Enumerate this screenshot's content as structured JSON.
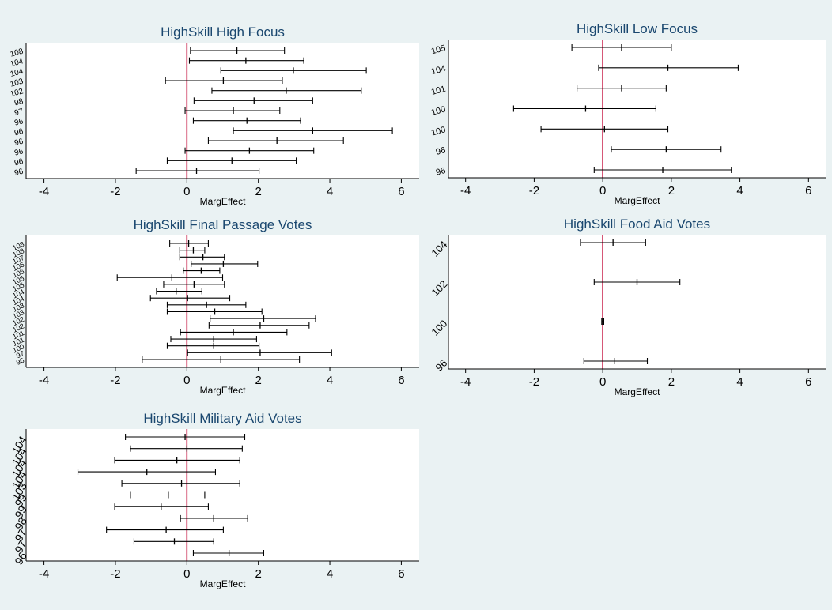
{
  "figure": {
    "background": "#eaf2f3",
    "plot_background": "#ffffff",
    "title_color": "#1a476f",
    "reference_line_color": "#c10534",
    "whisker_color": "#000000"
  },
  "chart_data": [
    {
      "type": "scatter",
      "title": "HighSkill High Focus",
      "xlabel": "MargEffect",
      "xlim": [
        -4.5,
        6.5
      ],
      "xticks": [
        -4,
        -2,
        0,
        2,
        4,
        6
      ],
      "categories": [
        "108",
        "104",
        "104",
        "103",
        "102",
        "98",
        "97",
        "96",
        "96",
        "96",
        "96",
        "96",
        "96"
      ],
      "point": [
        1.4,
        1.65,
        2.98,
        1.02,
        2.78,
        1.88,
        1.3,
        1.68,
        3.52,
        2.52,
        1.75,
        1.26,
        0.27
      ],
      "low": [
        0.1,
        0.07,
        0.95,
        -0.6,
        0.7,
        0.2,
        -0.05,
        0.18,
        1.3,
        0.6,
        -0.05,
        -0.55,
        -1.42
      ],
      "high": [
        2.73,
        3.27,
        5.02,
        2.67,
        4.88,
        3.52,
        2.6,
        3.18,
        5.75,
        4.38,
        3.55,
        3.06,
        2.02
      ],
      "reference_line": 0
    },
    {
      "type": "scatter",
      "title": "HighSkill Low Focus",
      "xlabel": "MargEffect",
      "xlim": [
        -4.5,
        6.5
      ],
      "xticks": [
        -4,
        -2,
        0,
        2,
        4,
        6
      ],
      "categories": [
        "105",
        "104",
        "101",
        "100",
        "100",
        "96",
        "96"
      ],
      "point": [
        0.55,
        1.9,
        0.55,
        -0.5,
        0.05,
        1.85,
        1.75
      ],
      "low": [
        -0.9,
        -0.12,
        -0.75,
        -2.6,
        -1.8,
        0.25,
        -0.25
      ],
      "high": [
        2.0,
        3.95,
        1.85,
        1.55,
        1.9,
        3.45,
        3.75
      ],
      "reference_line": 0
    },
    {
      "type": "scatter",
      "title": "HighSkill Final Passage Votes",
      "xlabel": "MargEffect",
      "xlim": [
        -4.5,
        6.5
      ],
      "xticks": [
        -4,
        -2,
        0,
        2,
        4,
        6
      ],
      "categories": [
        "108",
        "108",
        "107",
        "106",
        "106",
        "105",
        "105",
        "104",
        "104",
        "103",
        "103",
        "102",
        "102",
        "101",
        "101",
        "100",
        "97",
        "96"
      ],
      "point": [
        0.05,
        0.18,
        0.45,
        1.02,
        0.4,
        -0.42,
        0.2,
        -0.3,
        0.02,
        0.55,
        0.78,
        2.15,
        2.05,
        1.3,
        0.75,
        0.75,
        2.05,
        0.95
      ],
      "low": [
        -0.48,
        -0.2,
        -0.2,
        0.12,
        -0.1,
        -1.95,
        -0.65,
        -0.85,
        -1.02,
        -0.55,
        -0.55,
        0.65,
        0.62,
        -0.18,
        -0.45,
        -0.55,
        0.02,
        -1.25
      ],
      "high": [
        0.6,
        0.5,
        1.05,
        1.98,
        0.92,
        1.0,
        1.05,
        0.42,
        1.2,
        1.65,
        2.1,
        3.6,
        3.42,
        2.8,
        1.95,
        2.02,
        4.05,
        3.15
      ],
      "reference_line": 0
    },
    {
      "type": "scatter",
      "title": "HighSkill Food Aid Votes",
      "xlabel": "MargEffect",
      "xlim": [
        -4.5,
        6.5
      ],
      "xticks": [
        -4,
        -2,
        0,
        2,
        4,
        6
      ],
      "categories": [
        "104",
        "102",
        "100",
        "96"
      ],
      "point": [
        0.3,
        1.0,
        0.0,
        0.35
      ],
      "low": [
        -0.65,
        -0.25,
        -0.03,
        -0.55
      ],
      "high": [
        1.25,
        2.25,
        0.03,
        1.3
      ],
      "reference_line": 0
    },
    {
      "type": "scatter",
      "title": "HighSkill Military Aid Votes",
      "xlabel": "MargEffect",
      "xlim": [
        -4.5,
        6.5
      ],
      "xticks": [
        -4,
        -2,
        0,
        2,
        4,
        6
      ],
      "categories": [
        "104",
        "104",
        "104",
        "104",
        "103",
        "99",
        "99",
        "98",
        "97",
        "97",
        "96"
      ],
      "point": [
        -0.05,
        0.0,
        -0.28,
        -1.12,
        -0.15,
        -0.52,
        -0.72,
        0.75,
        -0.58,
        -0.35,
        1.18
      ],
      "low": [
        -1.72,
        -1.58,
        -2.02,
        -3.05,
        -1.82,
        -1.58,
        -2.02,
        -0.18,
        -2.25,
        -1.48,
        0.18
      ],
      "high": [
        1.62,
        1.55,
        1.48,
        0.8,
        1.48,
        0.5,
        0.6,
        1.7,
        1.02,
        0.75,
        2.15
      ],
      "reference_line": 0
    }
  ]
}
